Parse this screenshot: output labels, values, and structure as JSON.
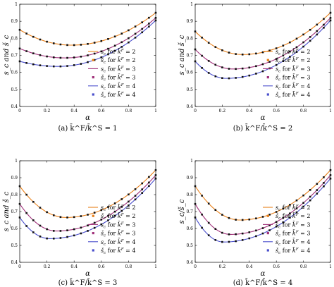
{
  "figure": {
    "legend_labels": [
      "s_c for k̄^F = 2",
      "š_c for k̄^F = 2",
      "s_c for k̄^F = 3",
      "š_c for k̄^F = 3",
      "s_c for k̄^F = 4",
      "š_c for k̄^F = 4"
    ],
    "colors": {
      "kF2": "#e8801a",
      "kF3": "#a0307a",
      "kF4": "#4a4fcc",
      "marker": "#111111"
    }
  },
  "chart_data": [
    {
      "type": "line",
      "caption": "(a) k̄^F/k̄^S = 1",
      "xlabel": "α",
      "ylabel": "s_c and š_c",
      "xlim": [
        0,
        1
      ],
      "ylim": [
        0.4,
        1
      ],
      "xticks": [
        "0",
        "0.2",
        "0.4",
        "0.6",
        "0.8",
        "1"
      ],
      "yticks": [
        "0.4",
        "0.5",
        "0.6",
        "0.7",
        "0.8",
        "0.9",
        "1"
      ],
      "legend_position": "bottom-right",
      "series": [
        {
          "name": "s_c for k̄^F = 2",
          "min_at": [
            0.38,
            0.76
          ],
          "start": 0.85,
          "end": 0.95
        },
        {
          "name": "s_c for k̄^F = 3",
          "min_at": [
            0.33,
            0.685
          ],
          "start": 0.74,
          "end": 0.92
        },
        {
          "name": "s_c for k̄^F = 4",
          "min_at": [
            0.28,
            0.635
          ],
          "start": 0.665,
          "end": 0.905
        }
      ]
    },
    {
      "type": "line",
      "caption": "(b) k̄^F/k̄^S = 2",
      "xlabel": "α",
      "ylabel": "s_c and š_c",
      "xlim": [
        0,
        1
      ],
      "ylim": [
        0.4,
        1
      ],
      "xticks": [
        "0",
        "0.2",
        "0.4",
        "0.6",
        "0.8",
        "1"
      ],
      "yticks": [
        "0.4",
        "0.5",
        "0.6",
        "0.7",
        "0.8",
        "0.9",
        "1"
      ],
      "legend_position": "bottom-right",
      "series": [
        {
          "name": "s_c for k̄^F = 2",
          "min_at": [
            0.35,
            0.705
          ],
          "start": 0.84,
          "end": 0.95
        },
        {
          "name": "s_c for k̄^F = 3",
          "min_at": [
            0.28,
            0.62
          ],
          "start": 0.735,
          "end": 0.92
        },
        {
          "name": "s_c for k̄^F = 4",
          "min_at": [
            0.23,
            0.565
          ],
          "start": 0.665,
          "end": 0.905
        }
      ]
    },
    {
      "type": "line",
      "caption": "(c) k̄^F/k̄^S = 3",
      "xlabel": "α",
      "ylabel": "s_c and š_c",
      "xlim": [
        0,
        1
      ],
      "ylim": [
        0.4,
        1
      ],
      "xticks": [
        "0",
        "0.2",
        "0.4",
        "0.6",
        "0.8",
        "1"
      ],
      "yticks": [
        "0.4",
        "0.5",
        "0.6",
        "0.7",
        "0.8",
        "0.9",
        "1"
      ],
      "legend_position": "bottom-right",
      "series": [
        {
          "name": "s_c for k̄^F = 2",
          "min_at": [
            0.34,
            0.665
          ],
          "start": 0.85,
          "end": 0.945
        },
        {
          "name": "s_c for k̄^F = 3",
          "min_at": [
            0.27,
            0.585
          ],
          "start": 0.745,
          "end": 0.915
        },
        {
          "name": "s_c for k̄^F = 4",
          "min_at": [
            0.22,
            0.54
          ],
          "start": 0.665,
          "end": 0.895
        }
      ]
    },
    {
      "type": "line",
      "caption": "(d) k̄^F/k̄^S = 4",
      "xlabel": "α",
      "ylabel": "s_c/š_c",
      "xlim": [
        0,
        1
      ],
      "ylim": [
        0.4,
        1
      ],
      "xticks": [
        "0",
        "0.2",
        "0.4",
        "0.6",
        "0.8",
        "1"
      ],
      "yticks": [
        "0.4",
        "0.5",
        "0.6",
        "0.7",
        "0.8",
        "0.9",
        "1"
      ],
      "legend_position": "bottom-right",
      "series": [
        {
          "name": "s_c for k̄^F = 2",
          "min_at": [
            0.33,
            0.65
          ],
          "start": 0.85,
          "end": 0.945
        },
        {
          "name": "s_c for k̄^F = 3",
          "min_at": [
            0.26,
            0.565
          ],
          "start": 0.745,
          "end": 0.915
        },
        {
          "name": "s_c for k̄^F = 4",
          "min_at": [
            0.21,
            0.52
          ],
          "start": 0.665,
          "end": 0.895
        }
      ]
    }
  ]
}
